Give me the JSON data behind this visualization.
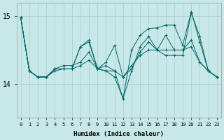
{
  "xlabel": "Humidex (Indice chaleur)",
  "bg_color": "#c8e8e8",
  "line_color": "#006666",
  "grid_color": "#a8cccc",
  "xlim": [
    -0.5,
    23.5
  ],
  "ylim": [
    13.5,
    15.2
  ],
  "yticks": [
    14,
    15
  ],
  "xticks": [
    0,
    1,
    2,
    3,
    4,
    5,
    6,
    7,
    8,
    9,
    10,
    11,
    12,
    13,
    14,
    15,
    16,
    17,
    18,
    19,
    20,
    21,
    22,
    23
  ],
  "lines": [
    [
      14.98,
      14.19,
      14.1,
      14.1,
      14.19,
      14.22,
      14.22,
      14.27,
      14.35,
      14.22,
      14.27,
      14.19,
      14.1,
      14.27,
      14.42,
      14.5,
      14.5,
      14.5,
      14.5,
      14.5,
      14.55,
      14.32,
      14.19,
      14.1
    ],
    [
      14.98,
      14.19,
      14.1,
      14.1,
      14.22,
      14.22,
      14.22,
      14.55,
      14.62,
      14.22,
      14.19,
      14.19,
      13.78,
      14.19,
      14.55,
      14.7,
      14.5,
      14.42,
      14.42,
      14.42,
      15.05,
      14.7,
      14.19,
      14.1
    ],
    [
      14.98,
      14.19,
      14.1,
      14.1,
      14.22,
      14.22,
      14.22,
      14.55,
      14.65,
      14.22,
      14.19,
      14.1,
      13.78,
      14.5,
      14.72,
      14.82,
      14.83,
      14.87,
      14.87,
      14.57,
      15.07,
      14.62,
      14.19,
      14.1
    ],
    [
      14.98,
      14.19,
      14.1,
      14.1,
      14.22,
      14.27,
      14.27,
      14.32,
      14.47,
      14.22,
      14.32,
      14.57,
      14.1,
      14.22,
      14.47,
      14.62,
      14.5,
      14.72,
      14.5,
      14.5,
      14.65,
      14.32,
      14.19,
      14.1
    ]
  ]
}
